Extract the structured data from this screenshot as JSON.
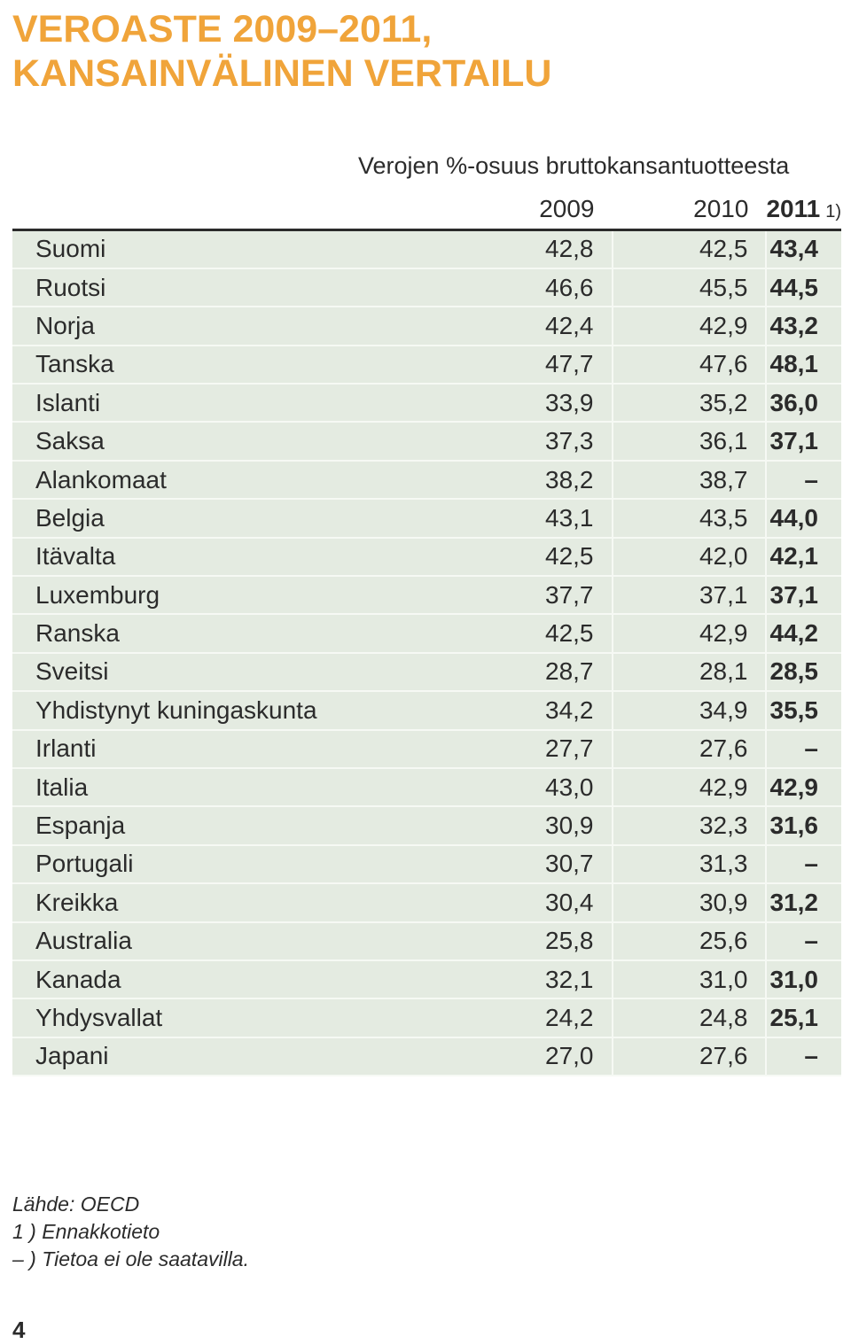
{
  "title": {
    "line1": "VEROASTE 2009–2011,",
    "line2": "KANSAINVÄLINEN VERTAILU"
  },
  "table": {
    "subtitle": "Verojen %-osuus bruttokansantuotteesta",
    "headers": [
      "2009",
      "2010",
      "2011"
    ],
    "last_header_note": "1)",
    "rows": [
      {
        "country": "Suomi",
        "y2009": "42,8",
        "y2010": "42,5",
        "y2011": "43,4"
      },
      {
        "country": "Ruotsi",
        "y2009": "46,6",
        "y2010": "45,5",
        "y2011": "44,5"
      },
      {
        "country": "Norja",
        "y2009": "42,4",
        "y2010": "42,9",
        "y2011": "43,2"
      },
      {
        "country": "Tanska",
        "y2009": "47,7",
        "y2010": "47,6",
        "y2011": "48,1"
      },
      {
        "country": "Islanti",
        "y2009": "33,9",
        "y2010": "35,2",
        "y2011": "36,0"
      },
      {
        "country": "Saksa",
        "y2009": "37,3",
        "y2010": "36,1",
        "y2011": "37,1"
      },
      {
        "country": "Alankomaat",
        "y2009": "38,2",
        "y2010": "38,7",
        "y2011": "–"
      },
      {
        "country": "Belgia",
        "y2009": "43,1",
        "y2010": "43,5",
        "y2011": "44,0"
      },
      {
        "country": "Itävalta",
        "y2009": "42,5",
        "y2010": "42,0",
        "y2011": "42,1"
      },
      {
        "country": "Luxemburg",
        "y2009": "37,7",
        "y2010": "37,1",
        "y2011": "37,1"
      },
      {
        "country": "Ranska",
        "y2009": "42,5",
        "y2010": "42,9",
        "y2011": "44,2"
      },
      {
        "country": "Sveitsi",
        "y2009": "28,7",
        "y2010": "28,1",
        "y2011": "28,5"
      },
      {
        "country": "Yhdistynyt kuningaskunta",
        "y2009": "34,2",
        "y2010": "34,9",
        "y2011": "35,5"
      },
      {
        "country": "Irlanti",
        "y2009": "27,7",
        "y2010": "27,6",
        "y2011": "–"
      },
      {
        "country": "Italia",
        "y2009": "43,0",
        "y2010": "42,9",
        "y2011": "42,9"
      },
      {
        "country": "Espanja",
        "y2009": "30,9",
        "y2010": "32,3",
        "y2011": "31,6"
      },
      {
        "country": "Portugali",
        "y2009": "30,7",
        "y2010": "31,3",
        "y2011": "–"
      },
      {
        "country": "Kreikka",
        "y2009": "30,4",
        "y2010": "30,9",
        "y2011": "31,2"
      },
      {
        "country": "Australia",
        "y2009": "25,8",
        "y2010": "25,6",
        "y2011": "–"
      },
      {
        "country": "Kanada",
        "y2009": "32,1",
        "y2010": "31,0",
        "y2011": "31,0"
      },
      {
        "country": "Yhdysvallat",
        "y2009": "24,2",
        "y2010": "24,8",
        "y2011": "25,1"
      },
      {
        "country": "Japani",
        "y2009": "27,0",
        "y2010": "27,6",
        "y2011": "–"
      }
    ]
  },
  "notes": {
    "source": "Lähde: OECD",
    "footnote1": "1 ) Ennakkotieto",
    "footnote2": "– ) Tietoa ei ole saatavilla."
  },
  "page_number": "4",
  "colors": {
    "title": "#f0a43a",
    "row_background": "#e4ebe1",
    "text": "#2b2b2b"
  }
}
